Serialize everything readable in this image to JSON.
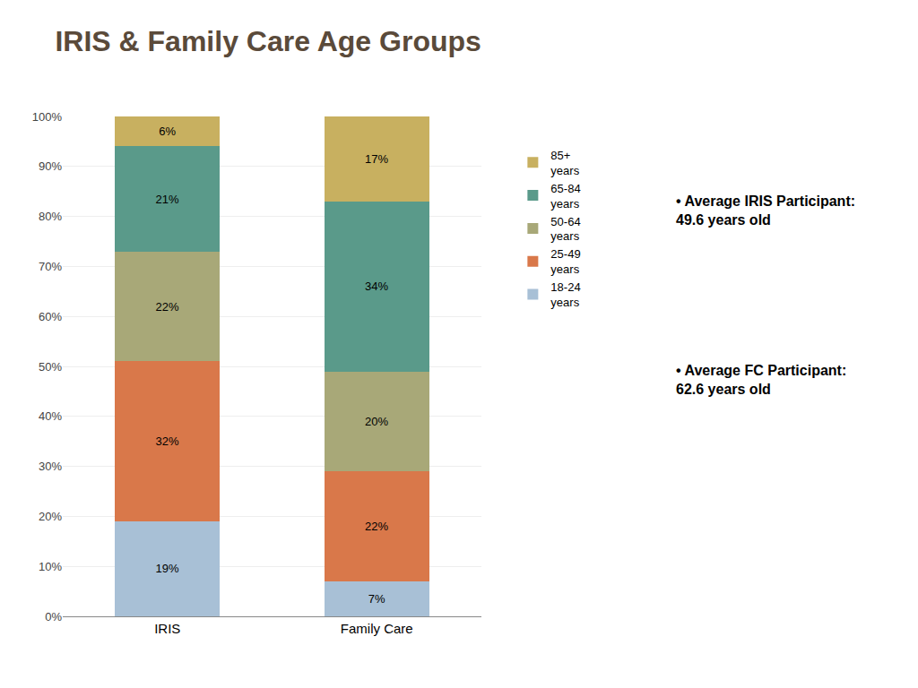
{
  "chart_data": {
    "type": "bar",
    "title": "IRIS & Family Care Age Groups",
    "categories": [
      "IRIS",
      "Family Care"
    ],
    "stacked": true,
    "data_labels": true,
    "grid": true,
    "legend": "right",
    "ylim": [
      0,
      100
    ],
    "yticks": [
      {
        "value": 0,
        "label": "0%"
      },
      {
        "value": 10,
        "label": "10%"
      },
      {
        "value": 20,
        "label": "20%"
      },
      {
        "value": 30,
        "label": "30%"
      },
      {
        "value": 40,
        "label": "40%"
      },
      {
        "value": 50,
        "label": "50%"
      },
      {
        "value": 60,
        "label": "60%"
      },
      {
        "value": 70,
        "label": "70%"
      },
      {
        "value": 80,
        "label": "80%"
      },
      {
        "value": 90,
        "label": "90%"
      },
      {
        "value": 100,
        "label": "100%"
      }
    ],
    "series": [
      {
        "name": "18-24\nyears",
        "color": "#a8c0d6",
        "values": [
          19,
          7
        ],
        "value_labels": [
          "19%",
          "7%"
        ]
      },
      {
        "name": "25-49\nyears",
        "color": "#d9784a",
        "values": [
          32,
          22
        ],
        "value_labels": [
          "32%",
          "22%"
        ]
      },
      {
        "name": "50-64\nyears",
        "color": "#a8a878",
        "values": [
          22,
          20
        ],
        "value_labels": [
          "22%",
          "20%"
        ]
      },
      {
        "name": "65-84\nyears",
        "color": "#5a9a8a",
        "values": [
          21,
          34
        ],
        "value_labels": [
          "21%",
          "34%"
        ]
      },
      {
        "name": "85+\nyears",
        "color": "#c8b060",
        "values": [
          6,
          17
        ],
        "value_labels": [
          "6%",
          "17%"
        ]
      }
    ],
    "annotations": [
      "• Average IRIS Participant:\n49.6 years old",
      "• Average FC Participant:\n62.6 years old"
    ]
  }
}
